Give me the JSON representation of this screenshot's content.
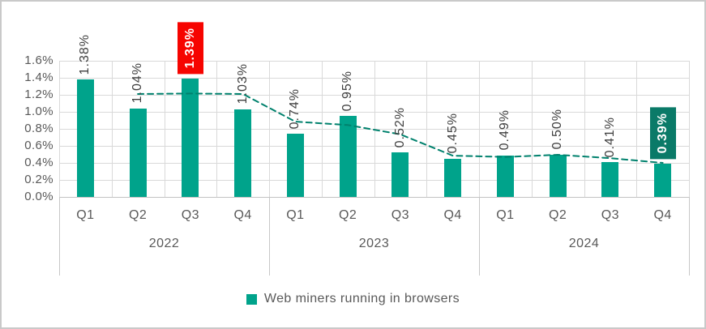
{
  "chart_data": {
    "type": "bar",
    "title": "",
    "categories": [
      "Q1",
      "Q2",
      "Q3",
      "Q4",
      "Q1",
      "Q2",
      "Q3",
      "Q4",
      "Q1",
      "Q2",
      "Q3",
      "Q4"
    ],
    "year_groups": [
      {
        "label": "2022",
        "span": 4
      },
      {
        "label": "2023",
        "span": 4
      },
      {
        "label": "2024",
        "span": 4
      }
    ],
    "series": [
      {
        "name": "Web miners running in browsers",
        "values": [
          1.38,
          1.04,
          1.39,
          1.03,
          0.74,
          0.95,
          0.52,
          0.45,
          0.49,
          0.5,
          0.41,
          0.39
        ]
      }
    ],
    "value_labels": [
      "1.38%",
      "1.04%",
      "1.39%",
      "1.03%",
      "0.74%",
      "0.95%",
      "0.52%",
      "0.45%",
      "0.49%",
      "0.50%",
      "0.41%",
      "0.39%"
    ],
    "highlighted_labels": [
      {
        "index": 2,
        "background": "#f60400",
        "text_color": "#ffffff"
      },
      {
        "index": 11,
        "background": "#0a7a68",
        "text_color": "#ffffff"
      }
    ],
    "y_axis": {
      "min": 0,
      "max": 1.6,
      "tick_step": 0.2,
      "tick_labels_top_to_bottom": [
        "1.6%",
        "1.4%",
        "1.2%",
        "1.0%",
        "0.8%",
        "0.6%",
        "0.4%",
        "0.2%",
        "0.0%"
      ]
    },
    "trendline": {
      "type": "2-period moving average (dashed)",
      "color": "#00816d",
      "category_indices": [
        1,
        2,
        3,
        4,
        5,
        6,
        7,
        8,
        9,
        10,
        11
      ],
      "values": [
        1.21,
        1.215,
        1.21,
        0.885,
        0.845,
        0.735,
        0.485,
        0.47,
        0.495,
        0.455,
        0.4
      ]
    },
    "legend": {
      "label": "Web miners running in browsers",
      "swatch_color": "#00a38b",
      "position": "bottom-center"
    },
    "colors": {
      "bar": "#00a38b",
      "grid": "#d9d9d9",
      "axis_text": "#595959",
      "value_label_text": "#3f3f3f",
      "frame_border": "#c9c9c9"
    },
    "grid": {
      "horizontal": true,
      "vertical": true
    }
  }
}
